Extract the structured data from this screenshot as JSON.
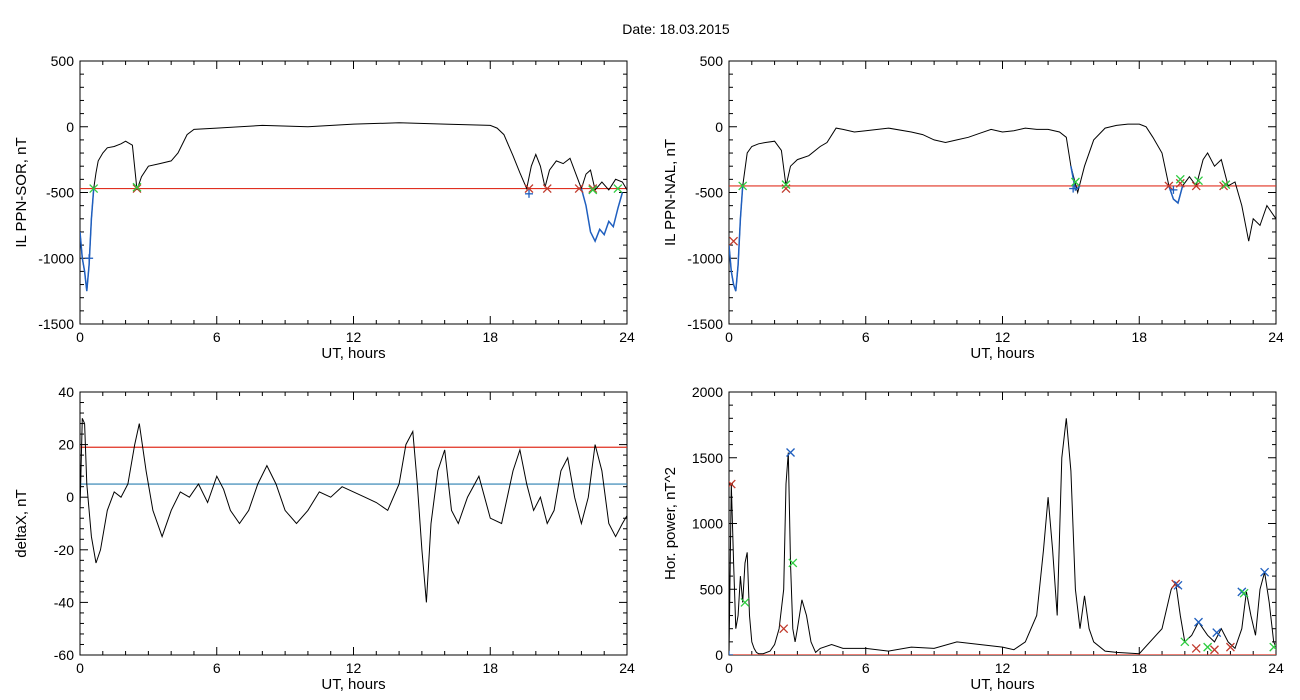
{
  "title": "Date:  18.03.2015",
  "chart_data": [
    {
      "type": "line",
      "xlabel": "UT, hours",
      "ylabel": "IL PPN-SOR, nT",
      "xlim": [
        0,
        24
      ],
      "ylim": [
        -1500,
        500
      ],
      "xticks": [
        0,
        6,
        12,
        18,
        24
      ],
      "yticks": [
        -1500,
        -1000,
        -500,
        0,
        500
      ],
      "threshold": -470,
      "series": [
        {
          "color": "#000000",
          "x": [
            0,
            0.1,
            0.2,
            0.3,
            0.4,
            0.5,
            0.6,
            0.7,
            0.8,
            1.0,
            1.2,
            1.5,
            1.8,
            2.0,
            2.3,
            2.5,
            2.7,
            3.0,
            3.5,
            4.0,
            4.3,
            4.7,
            5.0,
            6.0,
            8.0,
            10.0,
            12.0,
            14.0,
            16.0,
            18.0,
            18.3,
            18.6,
            19.0,
            19.3,
            19.6,
            19.8,
            20.0,
            20.2,
            20.4,
            20.6,
            20.9,
            21.2,
            21.5,
            21.8,
            22.0,
            22.2,
            22.4,
            22.6,
            22.9,
            23.2,
            23.5,
            23.8,
            24.0
          ],
          "y": [
            -800,
            -1000,
            -1100,
            -1250,
            -1050,
            -700,
            -470,
            -350,
            -260,
            -200,
            -160,
            -150,
            -130,
            -110,
            -140,
            -480,
            -380,
            -300,
            -280,
            -260,
            -200,
            -60,
            -20,
            -10,
            10,
            0,
            20,
            30,
            20,
            10,
            -10,
            -60,
            -220,
            -350,
            -470,
            -300,
            -210,
            -300,
            -460,
            -330,
            -260,
            -280,
            -240,
            -380,
            -470,
            -360,
            -330,
            -480,
            -420,
            -480,
            -400,
            -420,
            -480
          ]
        },
        {
          "color": "#1f5fbf",
          "x": [
            0,
            0.1,
            0.2,
            0.3,
            0.4,
            0.5,
            0.6
          ],
          "y": [
            -800,
            -1000,
            -1100,
            -1250,
            -1050,
            -700,
            -470
          ]
        },
        {
          "color": "#1f5fbf",
          "x": [
            22.0,
            22.2,
            22.4,
            22.6,
            22.8,
            23.0,
            23.2,
            23.4,
            23.6,
            23.8
          ],
          "y": [
            -470,
            -600,
            -800,
            -870,
            -780,
            -820,
            -720,
            -760,
            -620,
            -500
          ]
        }
      ],
      "markers": [
        {
          "x": 0.4,
          "y": -1000,
          "color": "#1f5fbf",
          "symbol": "+"
        },
        {
          "x": 0.6,
          "y": -470,
          "color": "#2ecc40",
          "symbol": "x"
        },
        {
          "x": 2.5,
          "y": -470,
          "color": "#c0392b",
          "symbol": "x"
        },
        {
          "x": 2.5,
          "y": -460,
          "color": "#2ecc40",
          "symbol": "x"
        },
        {
          "x": 19.7,
          "y": -470,
          "color": "#c0392b",
          "symbol": "x"
        },
        {
          "x": 19.7,
          "y": -510,
          "color": "#1f5fbf",
          "symbol": "+"
        },
        {
          "x": 20.5,
          "y": -470,
          "color": "#c0392b",
          "symbol": "x"
        },
        {
          "x": 21.9,
          "y": -470,
          "color": "#c0392b",
          "symbol": "x"
        },
        {
          "x": 22.5,
          "y": -470,
          "color": "#c0392b",
          "symbol": "x"
        },
        {
          "x": 22.5,
          "y": -480,
          "color": "#2ecc40",
          "symbol": "x"
        },
        {
          "x": 23.6,
          "y": -470,
          "color": "#2ecc40",
          "symbol": "x"
        }
      ]
    },
    {
      "type": "line",
      "xlabel": "UT, hours",
      "ylabel": "IL PPN-NAL, nT",
      "xlim": [
        0,
        24
      ],
      "ylim": [
        -1500,
        500
      ],
      "xticks": [
        0,
        6,
        12,
        18,
        24
      ],
      "yticks": [
        -1500,
        -1000,
        -500,
        0,
        500
      ],
      "threshold": -450,
      "series": [
        {
          "color": "#000000",
          "x": [
            0,
            0.1,
            0.2,
            0.3,
            0.4,
            0.5,
            0.6,
            0.8,
            1.0,
            1.3,
            1.6,
            2.0,
            2.3,
            2.5,
            2.7,
            3.0,
            3.5,
            4.0,
            4.3,
            4.7,
            5.0,
            5.5,
            6.0,
            7.0,
            8.0,
            8.5,
            9.0,
            9.5,
            10.0,
            10.5,
            11.0,
            11.5,
            12.0,
            12.5,
            13.0,
            13.5,
            14.0,
            14.5,
            14.8,
            15.0,
            15.3,
            15.6,
            16.0,
            16.5,
            17.0,
            17.5,
            18.0,
            18.3,
            18.6,
            19.0,
            19.3,
            19.5,
            19.7,
            19.9,
            20.2,
            20.5,
            20.8,
            21.0,
            21.3,
            21.6,
            21.9,
            22.2,
            22.5,
            22.8,
            23.0,
            23.3,
            23.6,
            24.0
          ],
          "y": [
            -900,
            -1100,
            -1200,
            -1250,
            -1050,
            -700,
            -450,
            -200,
            -150,
            -130,
            -120,
            -110,
            -180,
            -450,
            -300,
            -250,
            -220,
            -150,
            -120,
            -10,
            -20,
            -40,
            -30,
            -10,
            -40,
            -60,
            -100,
            -120,
            -100,
            -80,
            -50,
            -20,
            -40,
            -30,
            -10,
            -20,
            -20,
            -40,
            -80,
            -300,
            -500,
            -300,
            -100,
            -10,
            10,
            20,
            20,
            0,
            -80,
            -200,
            -450,
            -550,
            -580,
            -450,
            -380,
            -450,
            -250,
            -200,
            -300,
            -250,
            -450,
            -420,
            -600,
            -870,
            -700,
            -750,
            -600,
            -700
          ]
        },
        {
          "color": "#1f5fbf",
          "x": [
            0,
            0.1,
            0.2,
            0.3,
            0.4,
            0.5,
            0.6
          ],
          "y": [
            -900,
            -1100,
            -1200,
            -1250,
            -1050,
            -700,
            -450
          ]
        },
        {
          "color": "#1f5fbf",
          "x": [
            15.0,
            15.2,
            15.4
          ],
          "y": [
            -300,
            -480,
            -450
          ]
        },
        {
          "color": "#1f5fbf",
          "x": [
            19.3,
            19.5,
            19.7,
            19.9
          ],
          "y": [
            -450,
            -550,
            -580,
            -450
          ]
        }
      ],
      "markers": [
        {
          "x": 0.2,
          "y": -870,
          "color": "#c0392b",
          "symbol": "x"
        },
        {
          "x": 0.6,
          "y": -450,
          "color": "#2ecc40",
          "symbol": "x"
        },
        {
          "x": 2.5,
          "y": -470,
          "color": "#c0392b",
          "symbol": "x"
        },
        {
          "x": 2.5,
          "y": -440,
          "color": "#2ecc40",
          "symbol": "x"
        },
        {
          "x": 15.1,
          "y": -470,
          "color": "#1f5fbf",
          "symbol": "+"
        },
        {
          "x": 15.2,
          "y": -420,
          "color": "#2ecc40",
          "symbol": "x"
        },
        {
          "x": 19.3,
          "y": -450,
          "color": "#c0392b",
          "symbol": "x"
        },
        {
          "x": 19.5,
          "y": -480,
          "color": "#1f5fbf",
          "symbol": "+"
        },
        {
          "x": 19.8,
          "y": -430,
          "color": "#c0392b",
          "symbol": "x"
        },
        {
          "x": 19.8,
          "y": -400,
          "color": "#2ecc40",
          "symbol": "x"
        },
        {
          "x": 20.5,
          "y": -450,
          "color": "#c0392b",
          "symbol": "x"
        },
        {
          "x": 20.6,
          "y": -410,
          "color": "#2ecc40",
          "symbol": "x"
        },
        {
          "x": 21.7,
          "y": -450,
          "color": "#c0392b",
          "symbol": "x"
        },
        {
          "x": 21.8,
          "y": -440,
          "color": "#2ecc40",
          "symbol": "x"
        }
      ]
    },
    {
      "type": "line",
      "xlabel": "UT, hours",
      "ylabel": "deltaX, nT",
      "xlim": [
        0,
        24
      ],
      "ylim": [
        -60,
        40
      ],
      "xticks": [
        0,
        6,
        12,
        18,
        24
      ],
      "yticks": [
        -60,
        -40,
        -20,
        0,
        20,
        40
      ],
      "hlines": [
        {
          "y": 19,
          "color": "#e03020"
        },
        {
          "y": 5,
          "color": "#2a7fb0"
        }
      ],
      "series": [
        {
          "color": "#000000",
          "x": [
            0,
            0.1,
            0.2,
            0.3,
            0.5,
            0.7,
            0.9,
            1.2,
            1.5,
            1.8,
            2.1,
            2.4,
            2.6,
            2.9,
            3.2,
            3.6,
            4.0,
            4.4,
            4.8,
            5.2,
            5.6,
            6.0,
            6.3,
            6.6,
            7.0,
            7.4,
            7.8,
            8.2,
            8.6,
            9.0,
            9.5,
            10.0,
            10.5,
            11.0,
            11.5,
            12.0,
            12.5,
            13.0,
            13.5,
            14.0,
            14.3,
            14.6,
            14.8,
            15.0,
            15.2,
            15.4,
            15.7,
            16.0,
            16.3,
            16.6,
            17.0,
            17.5,
            18.0,
            18.5,
            19.0,
            19.3,
            19.6,
            19.9,
            20.2,
            20.5,
            20.8,
            21.1,
            21.4,
            21.7,
            22.0,
            22.3,
            22.6,
            22.9,
            23.2,
            23.5,
            23.8,
            24.0
          ],
          "y": [
            -5,
            30,
            28,
            5,
            -15,
            -25,
            -20,
            -5,
            2,
            0,
            5,
            20,
            28,
            10,
            -5,
            -15,
            -5,
            2,
            0,
            5,
            -2,
            8,
            3,
            -5,
            -10,
            -5,
            5,
            12,
            5,
            -5,
            -10,
            -5,
            2,
            0,
            4,
            2,
            0,
            -2,
            -5,
            5,
            20,
            25,
            5,
            -20,
            -40,
            -10,
            10,
            18,
            -5,
            -10,
            0,
            8,
            -8,
            -10,
            10,
            18,
            5,
            -5,
            0,
            -10,
            -5,
            10,
            15,
            0,
            -10,
            0,
            20,
            10,
            -10,
            -15,
            -10,
            -7
          ]
        }
      ],
      "markers": []
    },
    {
      "type": "line",
      "xlabel": "UT, hours",
      "ylabel": "Hor. power, nT^2",
      "xlim": [
        0,
        24
      ],
      "ylim": [
        0,
        2000
      ],
      "xticks": [
        0,
        6,
        12,
        18,
        24
      ],
      "yticks": [
        0,
        500,
        1000,
        1500,
        2000
      ],
      "threshold": 0,
      "series": [
        {
          "color": "#000000",
          "x": [
            0,
            0.1,
            0.2,
            0.3,
            0.4,
            0.5,
            0.6,
            0.7,
            0.8,
            0.9,
            1.0,
            1.1,
            1.2,
            1.3,
            1.5,
            1.8,
            2.0,
            2.2,
            2.4,
            2.5,
            2.6,
            2.7,
            2.8,
            2.9,
            3.0,
            3.2,
            3.4,
            3.6,
            3.8,
            4.0,
            4.5,
            5.0,
            6.0,
            7.0,
            8.0,
            9.0,
            10.0,
            11.0,
            12.0,
            12.5,
            13.0,
            13.5,
            13.8,
            14.0,
            14.2,
            14.4,
            14.6,
            14.8,
            15.0,
            15.2,
            15.4,
            15.6,
            15.8,
            16.0,
            16.5,
            17.0,
            18.0,
            19.0,
            19.4,
            19.6,
            19.8,
            20.0,
            20.3,
            20.6,
            21.0,
            21.3,
            21.6,
            21.9,
            22.2,
            22.5,
            22.7,
            22.9,
            23.1,
            23.3,
            23.5,
            23.7,
            23.9,
            24.0
          ],
          "y": [
            0,
            1300,
            700,
            200,
            300,
            600,
            400,
            700,
            780,
            300,
            100,
            50,
            20,
            10,
            10,
            30,
            80,
            200,
            500,
            1300,
            1540,
            700,
            200,
            100,
            200,
            420,
            300,
            100,
            20,
            50,
            80,
            50,
            50,
            30,
            60,
            50,
            100,
            80,
            60,
            40,
            100,
            300,
            800,
            1200,
            800,
            300,
            1500,
            1800,
            1400,
            500,
            200,
            450,
            200,
            100,
            30,
            20,
            10,
            200,
            500,
            550,
            300,
            100,
            150,
            250,
            150,
            100,
            200,
            100,
            50,
            200,
            480,
            300,
            150,
            500,
            630,
            400,
            100,
            60
          ]
        }
      ],
      "markers": [
        {
          "x": 0.0,
          "y": 0,
          "color": "#1f5fbf",
          "symbol": "+"
        },
        {
          "x": 0.1,
          "y": 1300,
          "color": "#c0392b",
          "symbol": "x"
        },
        {
          "x": 0.7,
          "y": 400,
          "color": "#2ecc40",
          "symbol": "x"
        },
        {
          "x": 2.4,
          "y": 200,
          "color": "#c0392b",
          "symbol": "x"
        },
        {
          "x": 2.7,
          "y": 1540,
          "color": "#1f5fbf",
          "symbol": "x"
        },
        {
          "x": 2.8,
          "y": 700,
          "color": "#2ecc40",
          "symbol": "x"
        },
        {
          "x": 19.6,
          "y": 540,
          "color": "#c0392b",
          "symbol": "x"
        },
        {
          "x": 19.7,
          "y": 530,
          "color": "#1f5fbf",
          "symbol": "x"
        },
        {
          "x": 20.0,
          "y": 100,
          "color": "#2ecc40",
          "symbol": "x"
        },
        {
          "x": 20.5,
          "y": 50,
          "color": "#c0392b",
          "symbol": "x"
        },
        {
          "x": 20.6,
          "y": 250,
          "color": "#1f5fbf",
          "symbol": "x"
        },
        {
          "x": 21.0,
          "y": 60,
          "color": "#2ecc40",
          "symbol": "x"
        },
        {
          "x": 21.3,
          "y": 40,
          "color": "#c0392b",
          "symbol": "x"
        },
        {
          "x": 21.4,
          "y": 170,
          "color": "#1f5fbf",
          "symbol": "x"
        },
        {
          "x": 22.0,
          "y": 60,
          "color": "#c0392b",
          "symbol": "x"
        },
        {
          "x": 22.5,
          "y": 480,
          "color": "#1f5fbf",
          "symbol": "x"
        },
        {
          "x": 22.6,
          "y": 470,
          "color": "#2ecc40",
          "symbol": "x"
        },
        {
          "x": 23.5,
          "y": 630,
          "color": "#1f5fbf",
          "symbol": "x"
        },
        {
          "x": 23.9,
          "y": 60,
          "color": "#2ecc40",
          "symbol": "x"
        }
      ]
    }
  ]
}
